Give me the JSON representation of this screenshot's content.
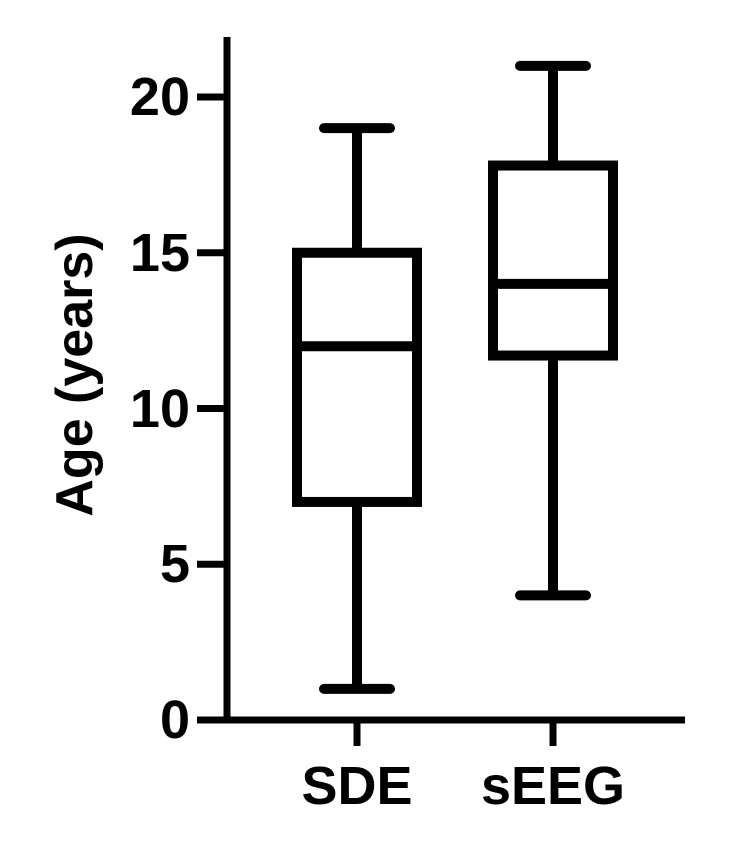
{
  "figure": {
    "background_color": "#ffffff",
    "ink_color": "#000000"
  },
  "chart_data": {
    "type": "box",
    "title": "",
    "xlabel": "",
    "ylabel": "Age (years)",
    "categories": [
      "SDE",
      "sEEG"
    ],
    "yticks": [
      0,
      5,
      10,
      15,
      20
    ],
    "ytick_labels": [
      "0",
      "5",
      "10",
      "15",
      "20"
    ],
    "ylim": [
      0,
      22
    ],
    "grid": false,
    "legend": "none",
    "box_style": {
      "fill": "#ffffff",
      "stroke": "#000000",
      "whisker_caps": "rounded"
    },
    "series": [
      {
        "name": "SDE",
        "min": 1,
        "q1": 7,
        "median": 12,
        "q3": 15,
        "max": 19
      },
      {
        "name": "sEEG",
        "min": 4,
        "q1": 11.7,
        "median": 14,
        "q3": 17.8,
        "max": 21
      }
    ]
  }
}
